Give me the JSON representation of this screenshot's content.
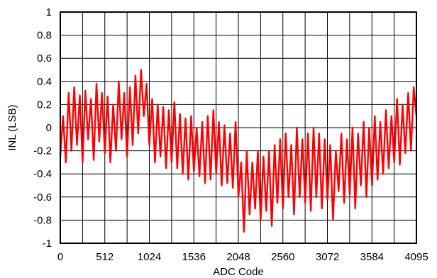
{
  "chart_data": {
    "type": "line",
    "title": "",
    "xlabel": "ADC Code",
    "ylabel": "INL (LSB)",
    "xlim": [
      0,
      4095
    ],
    "ylim": [
      -1,
      1
    ],
    "grid": true,
    "x_ticks": [
      0,
      512,
      1024,
      1536,
      2048,
      2560,
      3072,
      3584,
      4095
    ],
    "x_tick_labels": [
      "0",
      "512",
      "1024",
      "1536",
      "2048",
      "2560",
      "3072",
      "3584",
      "4095"
    ],
    "x_minor_divisions": 16,
    "y_ticks": [
      1,
      0.8,
      0.6,
      0.4,
      0.2,
      0,
      -0.2,
      -0.4,
      -0.6,
      -0.8,
      -1
    ],
    "y_tick_labels": [
      "1",
      "0.8",
      "0.6",
      "0.4",
      "0.2",
      "0",
      "-0.2",
      "-0.4",
      "-0.6",
      "-0.8",
      "-1"
    ],
    "series": [
      {
        "color": "#ff0000",
        "x": [
          0,
          32,
          64,
          96,
          128,
          160,
          192,
          224,
          256,
          288,
          320,
          352,
          384,
          416,
          448,
          480,
          512,
          544,
          576,
          608,
          640,
          672,
          704,
          736,
          768,
          800,
          832,
          864,
          896,
          928,
          960,
          992,
          1024,
          1056,
          1088,
          1120,
          1152,
          1184,
          1216,
          1248,
          1280,
          1312,
          1344,
          1376,
          1408,
          1440,
          1472,
          1504,
          1536,
          1568,
          1600,
          1632,
          1664,
          1696,
          1728,
          1760,
          1792,
          1824,
          1856,
          1888,
          1920,
          1952,
          1984,
          2016,
          2048,
          2080,
          2112,
          2144,
          2176,
          2208,
          2240,
          2272,
          2304,
          2336,
          2368,
          2400,
          2432,
          2464,
          2496,
          2528,
          2560,
          2592,
          2624,
          2656,
          2688,
          2720,
          2752,
          2784,
          2816,
          2848,
          2880,
          2912,
          2944,
          2976,
          3008,
          3040,
          3072,
          3104,
          3136,
          3168,
          3200,
          3232,
          3264,
          3296,
          3328,
          3360,
          3392,
          3424,
          3456,
          3488,
          3520,
          3552,
          3584,
          3616,
          3648,
          3680,
          3712,
          3744,
          3776,
          3808,
          3840,
          3872,
          3904,
          3936,
          3968,
          4000,
          4032,
          4064,
          4095
        ],
        "y": [
          -0.25,
          0.1,
          -0.3,
          0.3,
          -0.2,
          0.35,
          -0.15,
          0.28,
          -0.3,
          0.32,
          -0.1,
          0.25,
          -0.28,
          0.38,
          -0.12,
          0.3,
          -0.22,
          0.27,
          -0.3,
          0.2,
          -0.2,
          0.4,
          -0.1,
          0.3,
          -0.25,
          0.35,
          -0.15,
          0.45,
          -0.05,
          0.5,
          0.1,
          0.38,
          -0.15,
          0.25,
          -0.3,
          0.2,
          -0.25,
          0.18,
          -0.35,
          0.15,
          -0.3,
          0.22,
          -0.35,
          0.12,
          -0.4,
          0.08,
          -0.45,
          0.1,
          -0.38,
          0.0,
          -0.42,
          0.05,
          -0.48,
          0.1,
          -0.45,
          0.15,
          -0.4,
          0.05,
          -0.5,
          0.02,
          -0.48,
          -0.05,
          -0.52,
          0.05,
          -0.6,
          -0.3,
          -0.9,
          -0.2,
          -0.75,
          -0.3,
          -0.7,
          -0.2,
          -0.8,
          -0.25,
          -0.72,
          -0.2,
          -0.85,
          -0.15,
          -0.65,
          -0.1,
          -0.7,
          -0.05,
          -0.6,
          -0.15,
          -0.75,
          0.0,
          -0.6,
          -0.1,
          -0.65,
          -0.05,
          -0.72,
          0.0,
          -0.6,
          -0.05,
          -0.7,
          -0.1,
          -0.62,
          -0.15,
          -0.8,
          -0.2,
          -0.55,
          -0.05,
          -0.65,
          -0.1,
          -0.58,
          0.0,
          -0.7,
          -0.05,
          -0.5,
          0.05,
          -0.6,
          0.0,
          -0.5,
          0.1,
          -0.45,
          0.05,
          -0.4,
          0.15,
          -0.35,
          0.1,
          -0.3,
          0.25,
          -0.32,
          0.2,
          -0.22,
          0.3,
          -0.2,
          0.35,
          0.1
        ]
      }
    ]
  }
}
